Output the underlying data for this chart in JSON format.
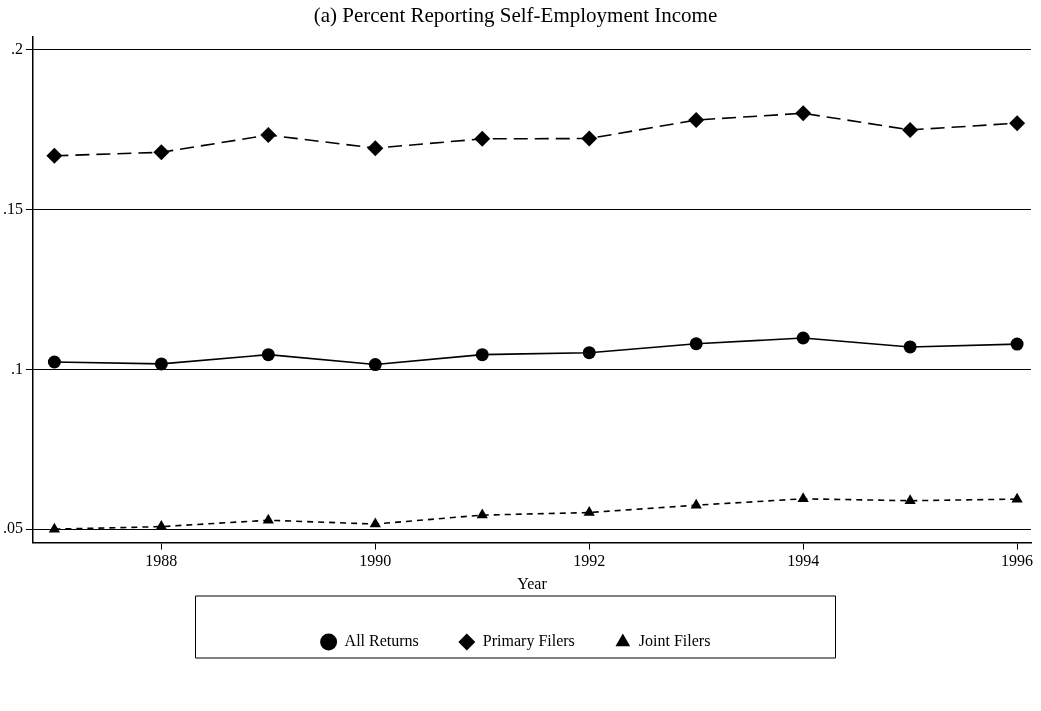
{
  "chart_data": {
    "type": "line",
    "title": "(a) Percent Reporting Self-Employment Income",
    "xlabel": "Year",
    "x": [
      1987,
      1988,
      1989,
      1990,
      1991,
      1992,
      1993,
      1994,
      1995,
      1996
    ],
    "xlim": [
      1986.8,
      1996.13
    ],
    "xticks": [
      1988,
      1990,
      1992,
      1994,
      1996
    ],
    "ylim": [
      0.0458,
      0.2039
    ],
    "yticks": [
      {
        "value": 0.05,
        "label": ".05"
      },
      {
        "value": 0.1,
        "label": ".1"
      },
      {
        "value": 0.15,
        "label": ".15"
      },
      {
        "value": 0.2,
        "label": ".2"
      }
    ],
    "grid": "y",
    "legend": "bottom",
    "series": [
      {
        "name": "All Returns",
        "color": "#000000",
        "marker": "circle",
        "line_style": "solid",
        "values": [
          0.1023,
          0.1017,
          0.1046,
          0.1015,
          0.1046,
          0.1052,
          0.108,
          0.1098,
          0.107,
          0.1079
        ]
      },
      {
        "name": "Primary Filers",
        "color": "#000000",
        "marker": "diamond",
        "line_style": "dashed",
        "values": [
          0.1668,
          0.1679,
          0.1733,
          0.1692,
          0.1721,
          0.1722,
          0.178,
          0.1801,
          0.1749,
          0.177
        ]
      },
      {
        "name": "Joint Filers",
        "color": "#000000",
        "marker": "triangle",
        "line_style": "dotted",
        "values": [
          0.05,
          0.0508,
          0.0528,
          0.0516,
          0.0544,
          0.0552,
          0.0575,
          0.0595,
          0.0589,
          0.0594
        ]
      }
    ]
  }
}
